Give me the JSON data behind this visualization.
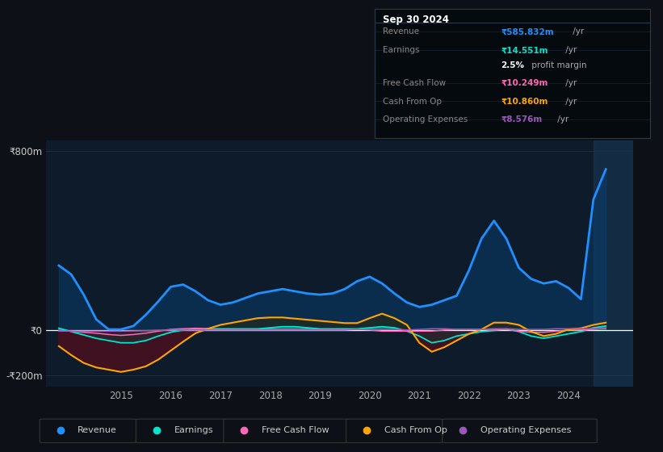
{
  "bg_color": "#0d1117",
  "plot_bg_color": "#0d1b2a",
  "grid_color": "#253545",
  "zero_line_color": "#ffffff",
  "ylim": [
    -250,
    850
  ],
  "yticks": [
    -200,
    0,
    800
  ],
  "ytick_labels": [
    "-₹200m",
    "₹0",
    "₹800m"
  ],
  "xlabel_years": [
    "2015",
    "2016",
    "2017",
    "2018",
    "2019",
    "2020",
    "2021",
    "2022",
    "2023",
    "2024"
  ],
  "x_tick_pos": [
    2015,
    2016,
    2017,
    2018,
    2019,
    2020,
    2021,
    2022,
    2023,
    2024
  ],
  "xlim": [
    2013.5,
    2025.3
  ],
  "highlight_x_start": 2024.5,
  "series": {
    "x": [
      2013.75,
      2014.0,
      2014.25,
      2014.5,
      2014.75,
      2015.0,
      2015.25,
      2015.5,
      2015.75,
      2016.0,
      2016.25,
      2016.5,
      2016.75,
      2017.0,
      2017.25,
      2017.5,
      2017.75,
      2018.0,
      2018.25,
      2018.5,
      2018.75,
      2019.0,
      2019.25,
      2019.5,
      2019.75,
      2020.0,
      2020.25,
      2020.5,
      2020.75,
      2021.0,
      2021.25,
      2021.5,
      2021.75,
      2022.0,
      2022.25,
      2022.5,
      2022.75,
      2023.0,
      2023.25,
      2023.5,
      2023.75,
      2024.0,
      2024.25,
      2024.5,
      2024.75
    ],
    "revenue": [
      290,
      250,
      160,
      50,
      5,
      5,
      20,
      70,
      130,
      195,
      205,
      175,
      135,
      115,
      125,
      145,
      165,
      175,
      185,
      175,
      165,
      160,
      165,
      185,
      220,
      240,
      210,
      165,
      125,
      105,
      115,
      135,
      155,
      270,
      410,
      490,
      410,
      280,
      230,
      210,
      220,
      190,
      140,
      585,
      720
    ],
    "earnings": [
      10,
      -5,
      -20,
      -35,
      -45,
      -55,
      -55,
      -45,
      -25,
      -8,
      2,
      7,
      7,
      7,
      7,
      7,
      7,
      12,
      17,
      17,
      12,
      7,
      7,
      7,
      7,
      12,
      17,
      12,
      -3,
      -25,
      -55,
      -45,
      -25,
      -15,
      -5,
      0,
      7,
      -5,
      -25,
      -35,
      -25,
      -15,
      -5,
      12,
      20
    ],
    "free_cash_flow": [
      0,
      -3,
      -8,
      -12,
      -18,
      -22,
      -18,
      -12,
      -3,
      5,
      8,
      10,
      8,
      5,
      5,
      5,
      5,
      5,
      5,
      5,
      5,
      5,
      5,
      5,
      5,
      2,
      -3,
      -3,
      -3,
      -3,
      -3,
      2,
      5,
      5,
      5,
      5,
      5,
      -3,
      -8,
      -8,
      -3,
      2,
      2,
      5,
      10
    ],
    "cash_from_op": [
      -70,
      -110,
      -145,
      -165,
      -175,
      -185,
      -175,
      -160,
      -130,
      -90,
      -50,
      -12,
      8,
      25,
      35,
      45,
      55,
      58,
      58,
      53,
      48,
      43,
      38,
      33,
      33,
      55,
      75,
      55,
      25,
      -55,
      -95,
      -75,
      -45,
      -15,
      5,
      35,
      35,
      25,
      -5,
      -25,
      -15,
      5,
      10,
      25,
      35
    ],
    "operating_expenses": [
      -3,
      -3,
      -3,
      -3,
      -3,
      -3,
      -2,
      -1,
      1,
      2,
      2,
      2,
      2,
      2,
      2,
      2,
      2,
      2,
      2,
      2,
      2,
      2,
      2,
      2,
      5,
      5,
      5,
      5,
      2,
      5,
      8,
      8,
      5,
      5,
      5,
      8,
      8,
      5,
      5,
      5,
      8,
      8,
      8,
      8,
      8
    ]
  },
  "revenue_fill_color": "#0a3d6b",
  "cfo_neg_fill_color": "#4a1020",
  "cfo_pos_fill_color": "#2a2a10",
  "earnings_fill_color": "#004a40",
  "revenue_line_color": "#1e90ff",
  "earnings_line_color": "#00e5cc",
  "fcf_line_color": "#ff69b4",
  "cfo_line_color": "#ffa500",
  "opex_line_color": "#9b59b6",
  "highlight_color": "#1a3a5a",
  "legend": [
    {
      "label": "Revenue",
      "color": "#1e90ff"
    },
    {
      "label": "Earnings",
      "color": "#00e5cc"
    },
    {
      "label": "Free Cash Flow",
      "color": "#ff69b4"
    },
    {
      "label": "Cash From Op",
      "color": "#ffa500"
    },
    {
      "label": "Operating Expenses",
      "color": "#9b59b6"
    }
  ],
  "info_box": {
    "date": "Sep 30 2024",
    "rows": [
      {
        "label": "Revenue",
        "value": "₹585.832m",
        "suffix": " /yr",
        "value_color": "#1e90ff"
      },
      {
        "label": "Earnings",
        "value": "₹14.551m",
        "suffix": " /yr",
        "value_color": "#00e5cc"
      },
      {
        "label": "",
        "value": "2.5%",
        "suffix": " profit margin",
        "value_color": "#ffffff"
      },
      {
        "label": "Free Cash Flow",
        "value": "₹10.249m",
        "suffix": " /yr",
        "value_color": "#ff69b4"
      },
      {
        "label": "Cash From Op",
        "value": "₹10.860m",
        "suffix": " /yr",
        "value_color": "#ffa500"
      },
      {
        "label": "Operating Expenses",
        "value": "₹8.576m",
        "suffix": " /yr",
        "value_color": "#9b59b6"
      }
    ]
  }
}
